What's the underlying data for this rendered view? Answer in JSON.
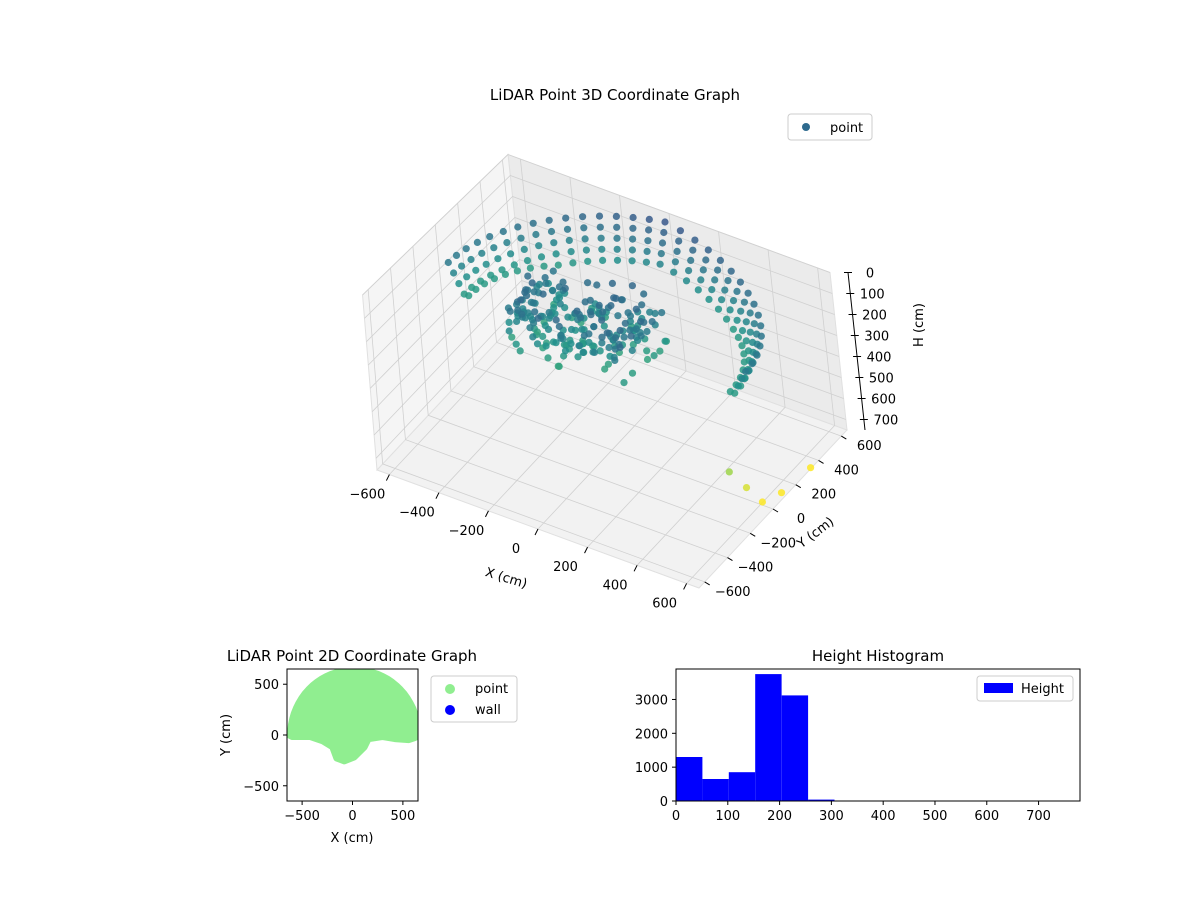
{
  "chart_data": [
    {
      "type": "scatter",
      "projection": "3d",
      "title": "LiDAR Point 3D Coordinate Graph",
      "xlabel": "X (cm)",
      "ylabel": "Y (cm)",
      "zlabel": "H (cm)",
      "xlim": [
        -650,
        650
      ],
      "ylim": [
        -650,
        650
      ],
      "zlim": [
        750,
        0
      ],
      "z_inverted": true,
      "xticks": [
        -600,
        -400,
        -200,
        0,
        200,
        400,
        600
      ],
      "yticks": [
        -600,
        -400,
        -200,
        0,
        200,
        400,
        600
      ],
      "zticks": [
        0,
        100,
        200,
        300,
        400,
        500,
        600,
        700
      ],
      "grid": true,
      "legend": {
        "placement": "upper-right",
        "entries": [
          "point"
        ]
      },
      "colormap": "viridis",
      "series": [
        {
          "name": "point",
          "color": "#2e6a8e",
          "description_shape": "dome",
          "dome": {
            "radius_cm": 600,
            "y_from_cm": -20,
            "height_min_cm": 0,
            "height_max_cm": 260
          },
          "blob": {
            "x_from_cm": -300,
            "x_to_cm": 200,
            "y_from_cm": -250,
            "y_to_cm": 200,
            "height_min_cm": 80,
            "height_max_cm": 300
          },
          "outliers": [
            {
              "x": 560,
              "y": -150,
              "z": 540
            },
            {
              "x": 600,
              "y": -100,
              "z": 620
            },
            {
              "x": 640,
              "y": -60,
              "z": 690
            },
            {
              "x": 650,
              "y": 80,
              "z": 720
            },
            {
              "x": 640,
              "y": 350,
              "z": 760
            }
          ]
        }
      ]
    },
    {
      "type": "scatter",
      "title": "LiDAR Point 2D Coordinate Graph",
      "xlabel": "X (cm)",
      "ylabel": "Y (cm)",
      "xlim": [
        -650,
        650
      ],
      "ylim": [
        -650,
        650
      ],
      "xticks": [
        -500,
        0,
        500
      ],
      "yticks": [
        -500,
        0,
        500
      ],
      "legend": {
        "placement": "outside-right",
        "entries": [
          "point",
          "wall"
        ]
      },
      "series": [
        {
          "name": "point",
          "color": "#90ee90"
        },
        {
          "name": "wall",
          "color": "#0000ff"
        }
      ]
    },
    {
      "type": "bar",
      "subtype": "histogram",
      "title": "Height Histogram",
      "xlim": [
        0,
        780
      ],
      "ylim": [
        0,
        3900
      ],
      "xticks": [
        0,
        100,
        200,
        300,
        400,
        500,
        600,
        700
      ],
      "yticks": [
        0,
        1000,
        2000,
        3000
      ],
      "legend": {
        "placement": "top-right",
        "entries": [
          "Height"
        ]
      },
      "series": [
        {
          "name": "Height",
          "color": "#0000ff",
          "bins": [
            {
              "from": 0,
              "to": 51,
              "count": 1300
            },
            {
              "from": 51,
              "to": 102,
              "count": 650
            },
            {
              "from": 102,
              "to": 153,
              "count": 850
            },
            {
              "from": 153,
              "to": 204,
              "count": 3750
            },
            {
              "from": 204,
              "to": 255,
              "count": 3120
            },
            {
              "from": 255,
              "to": 306,
              "count": 40
            },
            {
              "from": 306,
              "to": 357,
              "count": 0
            },
            {
              "from": 357,
              "to": 408,
              "count": 0
            },
            {
              "from": 408,
              "to": 459,
              "count": 0
            },
            {
              "from": 459,
              "to": 510,
              "count": 0
            },
            {
              "from": 510,
              "to": 561,
              "count": 0
            },
            {
              "from": 561,
              "to": 612,
              "count": 0
            },
            {
              "from": 612,
              "to": 663,
              "count": 0
            },
            {
              "from": 663,
              "to": 714,
              "count": 0
            },
            {
              "from": 714,
              "to": 765,
              "count": 0
            }
          ]
        }
      ]
    }
  ]
}
